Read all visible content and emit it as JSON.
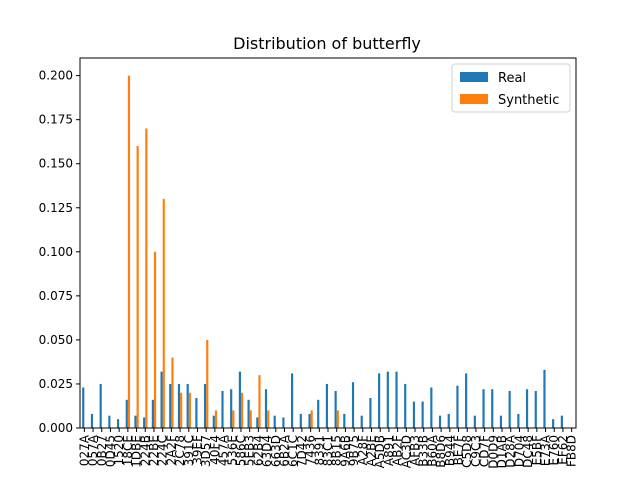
{
  "chart_data": {
    "type": "bar",
    "title": "Distribution of butterfly",
    "xlabel": "",
    "ylabel": "",
    "ylim": [
      0,
      0.21
    ],
    "yticks": [
      "0.000",
      "0.025",
      "0.050",
      "0.075",
      "0.100",
      "0.125",
      "0.150",
      "0.175",
      "0.200"
    ],
    "legend": {
      "placement": "top-right",
      "entries": [
        "Real",
        "Synthetic"
      ]
    },
    "grid": false,
    "categories": [
      "027A",
      "057A",
      "0B27",
      "0D45",
      "1520",
      "18CE",
      "1DBE",
      "224B",
      "22BE",
      "224C",
      "2A2F",
      "2C78",
      "391C",
      "39EF",
      "3D57",
      "40F4",
      "457A",
      "536E",
      "586C",
      "5EB3",
      "62B4",
      "63D4",
      "663D",
      "6B2A",
      "6C1C",
      "7D42",
      "7436",
      "8391",
      "83C1",
      "8B15",
      "9A6B",
      "9B75",
      "A28F",
      "A2BE",
      "A5DB",
      "A891",
      "AB2F",
      "AC3D",
      "AFB3",
      "B33B",
      "B60A",
      "B8D6",
      "B944",
      "BE7F",
      "C5D8",
      "C9C3",
      "CD7F",
      "D0D9",
      "D1AB",
      "D28A",
      "D704",
      "DC48",
      "E5BF",
      "E73A",
      "E760",
      "EF62",
      "FB8D"
    ],
    "series": [
      {
        "name": "Real",
        "color": "#1f77b4",
        "values": [
          0.023,
          0.008,
          0.025,
          0.007,
          0.005,
          0.016,
          0.007,
          0.006,
          0.016,
          0.032,
          0.025,
          0.025,
          0.025,
          0.017,
          0.025,
          0.007,
          0.021,
          0.022,
          0.032,
          0.016,
          0.006,
          0.022,
          0.007,
          0.006,
          0.031,
          0.008,
          0.008,
          0.016,
          0.025,
          0.021,
          0.008,
          0.026,
          0.007,
          0.017,
          0.031,
          0.032,
          0.032,
          0.025,
          0.015,
          0.015,
          0.023,
          0.007,
          0.008,
          0.024,
          0.031,
          0.007,
          0.022,
          0.022,
          0.007,
          0.021,
          0.008,
          0.022,
          0.021,
          0.033,
          0.005,
          0.007,
          0.0
        ]
      },
      {
        "name": "Synthetic",
        "color": "#ff7f0e",
        "values": [
          0,
          0,
          0,
          0,
          0,
          0.2,
          0.16,
          0.17,
          0.1,
          0.13,
          0.04,
          0.02,
          0.02,
          0,
          0.05,
          0.01,
          0,
          0.01,
          0.02,
          0.01,
          0.03,
          0.01,
          0,
          0,
          0,
          0,
          0.01,
          0,
          0,
          0.01,
          0,
          0,
          0,
          0,
          0,
          0,
          0,
          0,
          0,
          0,
          0,
          0,
          0,
          0,
          0,
          0,
          0,
          0,
          0,
          0,
          0,
          0,
          0,
          0,
          0,
          0,
          0
        ]
      }
    ]
  }
}
